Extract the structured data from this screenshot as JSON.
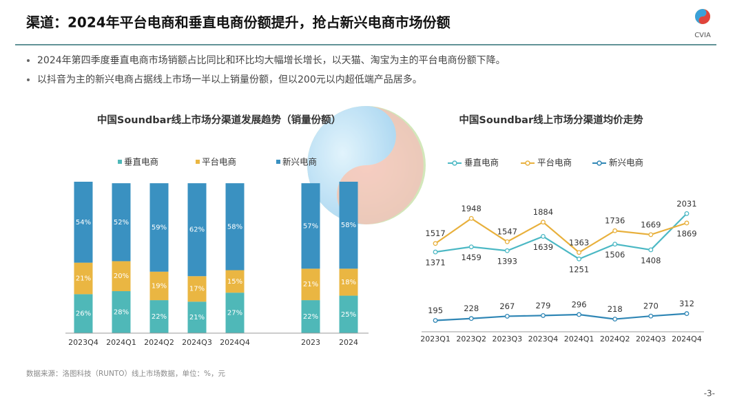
{
  "header": {
    "title": "渠道：2024年平台电商和垂直电商份额提升，抢占新兴电商市场份额",
    "logo_text": "CVIA"
  },
  "bullets": [
    "2024年第四季度垂直电商市场销额占比同比和环比均大幅增长增长，以天猫、淘宝为主的平台电商份额下降。",
    "以抖音为主的新兴电商占据线上市场一半以上销量份额，但以200元以内超低端产品居多。"
  ],
  "footer": {
    "source": "数据来源：洛图科技（RUNTO）线上市场数据，单位：%，元",
    "page": "-3-"
  },
  "chart_data": [
    {
      "type": "stacked-bar",
      "title": "中国Soundbar线上市场分渠道发展趋势（销量份额）",
      "categories": [
        "2023Q4",
        "2024Q1",
        "2024Q2",
        "2024Q3",
        "2024Q4",
        null,
        "2023",
        "2024"
      ],
      "ylim": [
        0,
        101
      ],
      "series": [
        {
          "name": "垂直电商",
          "color": "#4fb8b8",
          "values": [
            26,
            28,
            22,
            21,
            27,
            null,
            22,
            25
          ],
          "value_labels": [
            "26%",
            "28%",
            "22%",
            "21%",
            "27%",
            null,
            "22%",
            "25%"
          ]
        },
        {
          "name": "平台电商",
          "color": "#eab642",
          "values": [
            21,
            20,
            19,
            17,
            15,
            null,
            21,
            18
          ],
          "value_labels": [
            "21%",
            "20%",
            "19%",
            "17%",
            "15%",
            null,
            "21%",
            "18%"
          ]
        },
        {
          "name": "新兴电商",
          "color": "#3a91c1",
          "values": [
            54,
            52,
            59,
            62,
            58,
            null,
            57,
            58
          ],
          "value_labels": [
            "54%",
            "52%",
            "59%",
            "62%",
            "58%",
            null,
            "57%",
            "58%"
          ]
        }
      ]
    },
    {
      "type": "line",
      "title": "中国Soundbar线上市场分渠道均价走势",
      "categories": [
        "2023Q1",
        "2023Q2",
        "2023Q3",
        "2023Q4",
        "2024Q1",
        "2024Q2",
        "2024Q3",
        "2024Q4"
      ],
      "ylim": [
        0,
        2200
      ],
      "series": [
        {
          "name": "垂直电商",
          "color": "#4bb8c4",
          "values": [
            1371,
            1459,
            1393,
            1639,
            1251,
            1506,
            1408,
            2031
          ]
        },
        {
          "name": "平台电商",
          "color": "#e8b03c",
          "values": [
            1517,
            1948,
            1547,
            1884,
            1363,
            1736,
            1669,
            1869
          ]
        },
        {
          "name": "新兴电商",
          "color": "#2f86b5",
          "values": [
            195,
            228,
            267,
            279,
            296,
            218,
            270,
            312
          ]
        }
      ]
    }
  ]
}
